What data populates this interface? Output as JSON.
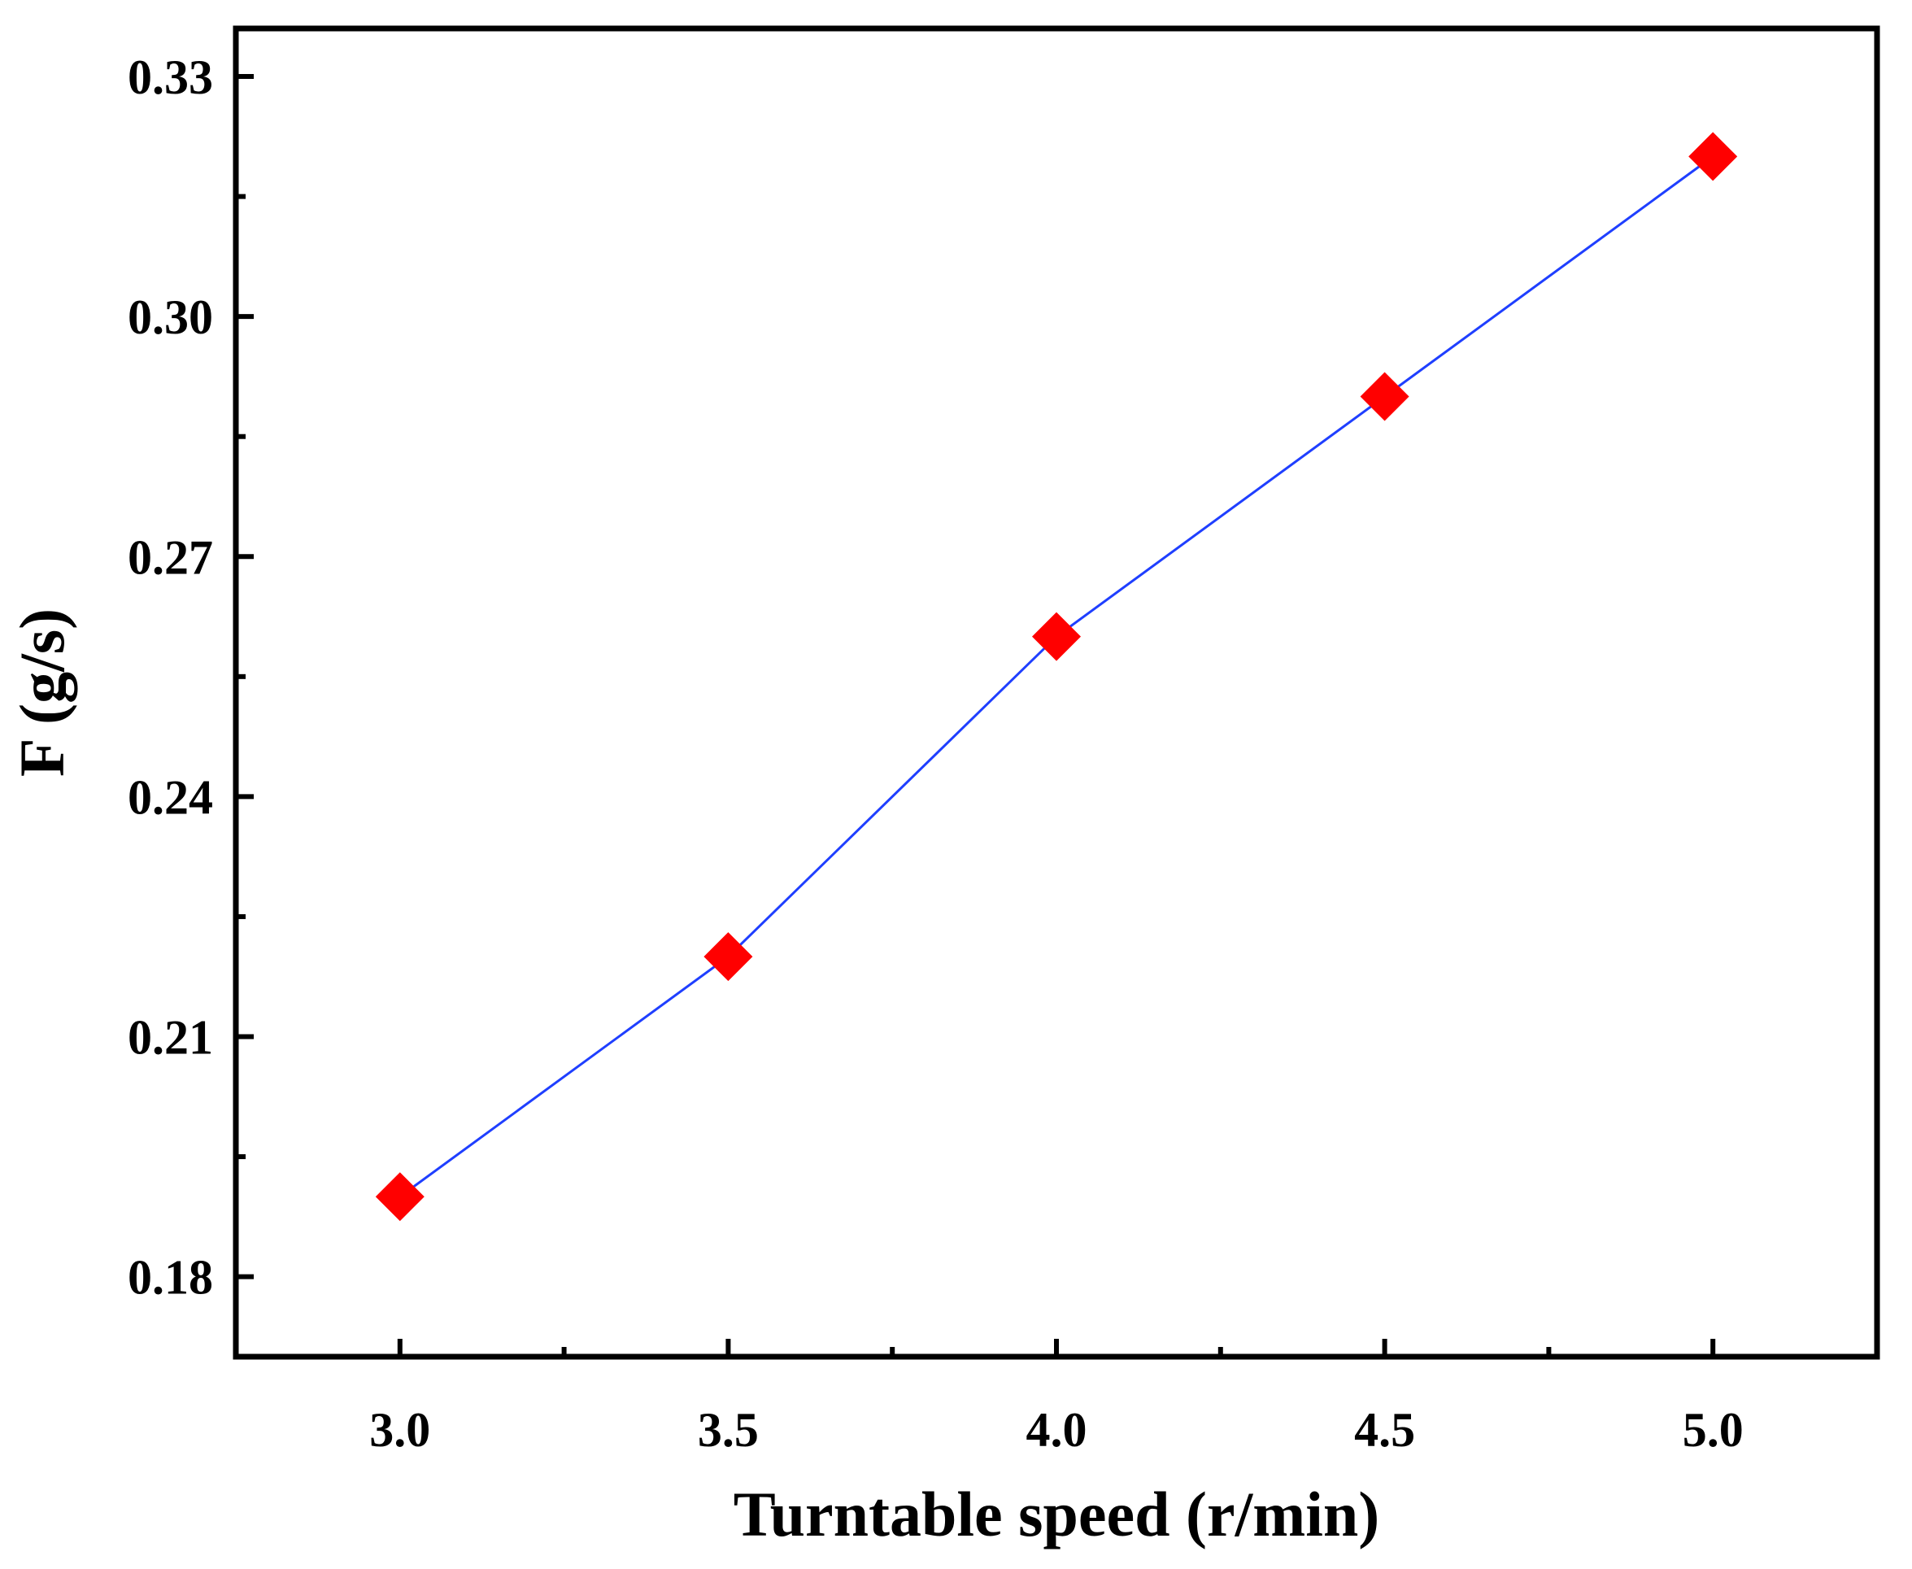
{
  "chart_data": {
    "type": "line",
    "title": "",
    "xlabel": "Turntable speed (r/min)",
    "ylabel": "F (g/s)",
    "xlim": [
      2.75,
      5.25
    ],
    "ylim": [
      0.17,
      0.336
    ],
    "x_ticks": [
      "3.0",
      "3.5",
      "4.0",
      "4.5",
      "5.0"
    ],
    "x_tick_values": [
      3.0,
      3.5,
      4.0,
      4.5,
      5.0
    ],
    "x_minor_ticks": [
      3.25,
      3.75,
      4.25,
      4.75
    ],
    "y_ticks": [
      "0.18",
      "0.21",
      "0.24",
      "0.27",
      "0.30",
      "0.33"
    ],
    "y_tick_values": [
      0.18,
      0.21,
      0.24,
      0.27,
      0.3,
      0.33
    ],
    "y_minor_ticks": [
      0.195,
      0.225,
      0.255,
      0.285,
      0.315
    ],
    "grid": false,
    "legend": "none",
    "series": [
      {
        "x": [
          3.0,
          3.5,
          4.0,
          4.5,
          5.0
        ],
        "y": [
          0.19,
          0.22,
          0.26,
          0.29,
          0.32
        ],
        "line_color": "#1f3fff",
        "marker": "diamond",
        "marker_color": "#ff0000"
      }
    ]
  }
}
